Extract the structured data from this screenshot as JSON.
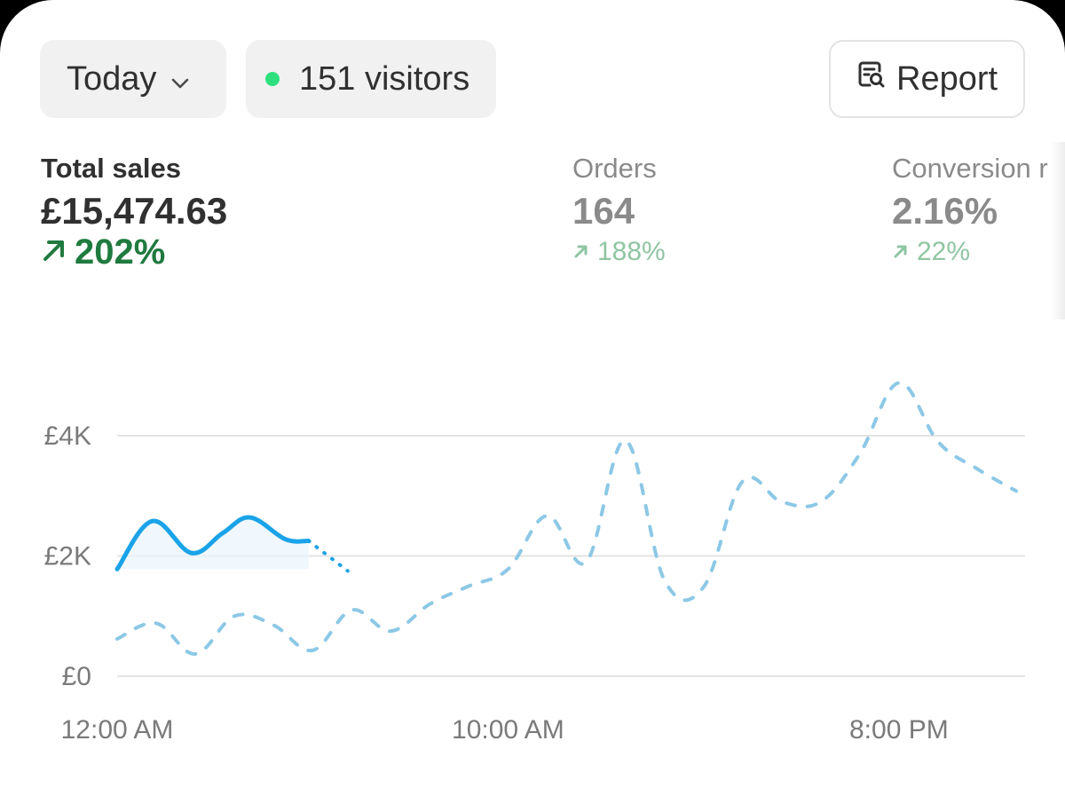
{
  "header": {
    "date_filter": "Today",
    "visitors_label": "151 visitors",
    "report_label": "Report"
  },
  "metrics": [
    {
      "label": "Total sales",
      "value": "£15,474.63",
      "change": "202%"
    },
    {
      "label": "Orders",
      "value": "164",
      "change": "188%"
    },
    {
      "label": "Conversion r",
      "value": "2.16%",
      "change": "22%"
    }
  ],
  "colors": {
    "live_dot": "#2ee07d",
    "positive": "#1f7a3f",
    "positive_muted": "#8fc5a3",
    "current_series": "#1aa3e8",
    "comparison_series": "#8cc8e6"
  },
  "icons": {
    "date_filter": "chevron-down-icon",
    "report": "report-search-icon",
    "change": "arrow-up-right-icon"
  },
  "chart_data": {
    "type": "line",
    "x_unit": "hour of day",
    "x_ticks": [
      {
        "label": "12:00 AM",
        "x": 0
      },
      {
        "label": "10:00 AM",
        "x": 10
      },
      {
        "label": "8:00 PM",
        "x": 20
      }
    ],
    "y_ticks": [
      {
        "label": "£0",
        "y": 0
      },
      {
        "label": "£2K",
        "y": 2000
      },
      {
        "label": "£4K",
        "y": 4000
      }
    ],
    "xlim": [
      0,
      23
    ],
    "ylim": [
      0,
      4000
    ],
    "grid": true,
    "series": [
      {
        "style": "solid",
        "x": [
          0,
          0.9,
          1.9,
          2.7,
          3.4,
          4.3,
          4.9
        ],
        "y": [
          1780,
          2580,
          2050,
          2380,
          2640,
          2280,
          2250
        ]
      },
      {
        "style": "dotted",
        "x": [
          4.9,
          5.9
        ],
        "y": [
          2250,
          1750
        ]
      },
      {
        "style": "dashed",
        "x": [
          0,
          1,
          2,
          3,
          4,
          5,
          6,
          7,
          8,
          9,
          10,
          11,
          12,
          13,
          14,
          15,
          16,
          17,
          18,
          19,
          20,
          21,
          22,
          23
        ],
        "y": [
          620,
          880,
          370,
          1000,
          850,
          430,
          1100,
          750,
          1200,
          1500,
          1780,
          2670,
          1900,
          3920,
          1600,
          1480,
          3240,
          2900,
          2900,
          3700,
          4880,
          3900,
          3450,
          3080
        ]
      }
    ]
  }
}
